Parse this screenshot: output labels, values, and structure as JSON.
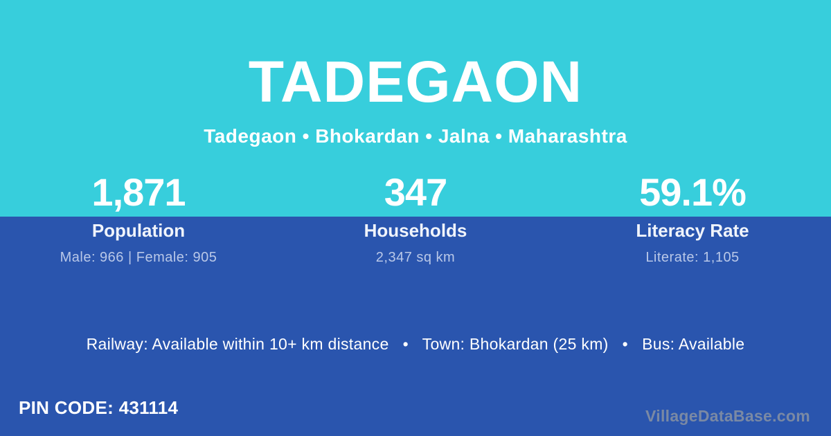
{
  "colors": {
    "top_background_cyan": "#37CEDC",
    "bottom_background_blue": "#2A55AE",
    "text_primary": "#ffffff",
    "text_muted_blue": "#b9c8e8"
  },
  "header": {
    "title": "TADEGAON",
    "breadcrumb": "Tadegaon  •  Bhokardan  •  Jalna  •  Maharashtra"
  },
  "stats": [
    {
      "value": "1,871",
      "label": "Population",
      "detail": "Male: 966 | Female: 905"
    },
    {
      "value": "347",
      "label": "Households",
      "detail": "2,347 sq km"
    },
    {
      "value": "59.1%",
      "label": "Literacy Rate",
      "detail": "Literate: 1,105"
    }
  ],
  "info_line": "Railway: Available within 10+ km distance   •   Town: Bhokardan (25 km)   •   Bus: Available",
  "footer": {
    "pin_code": "PIN CODE: 431114",
    "watermark": "VillageDataBase.com"
  }
}
